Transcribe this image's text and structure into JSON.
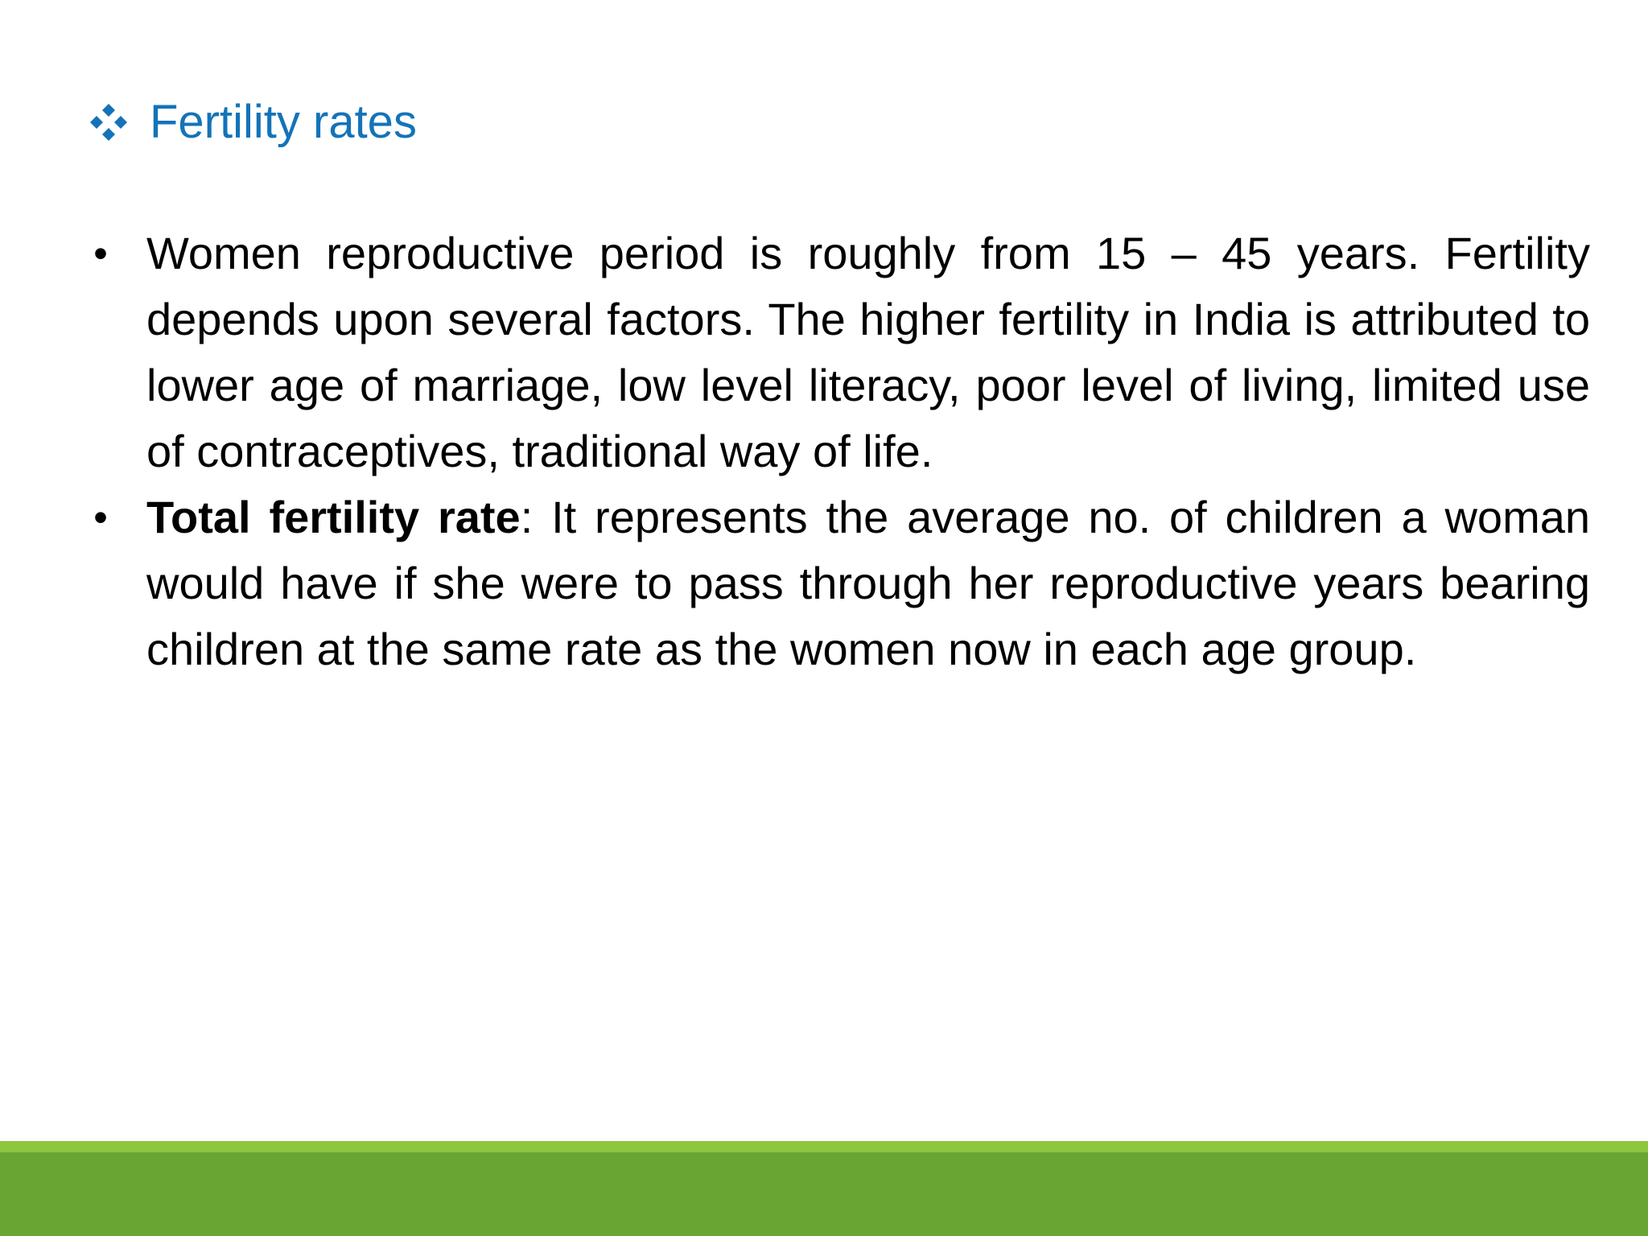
{
  "slide": {
    "title": "Fertility rates",
    "title_icon": "four-diamond-bullet-icon",
    "colors": {
      "title": "#1473b8",
      "footer_light": "#8dc63f",
      "footer_dark": "#68a533"
    },
    "bullets": [
      {
        "symbol": "•",
        "text": "Women reproductive period is roughly from 15 – 45 years. Fertility depends upon several factors. The higher fertility in India is attributed to lower age of marriage, low level literacy, poor level of living, limited use of contraceptives, traditional way of life."
      },
      {
        "symbol": "•",
        "term": "Total fertility rate",
        "text": ": It represents the average no. of children a woman would have if she were to pass through her reproductive years bearing children at the same rate as the women now in each age group."
      }
    ]
  }
}
